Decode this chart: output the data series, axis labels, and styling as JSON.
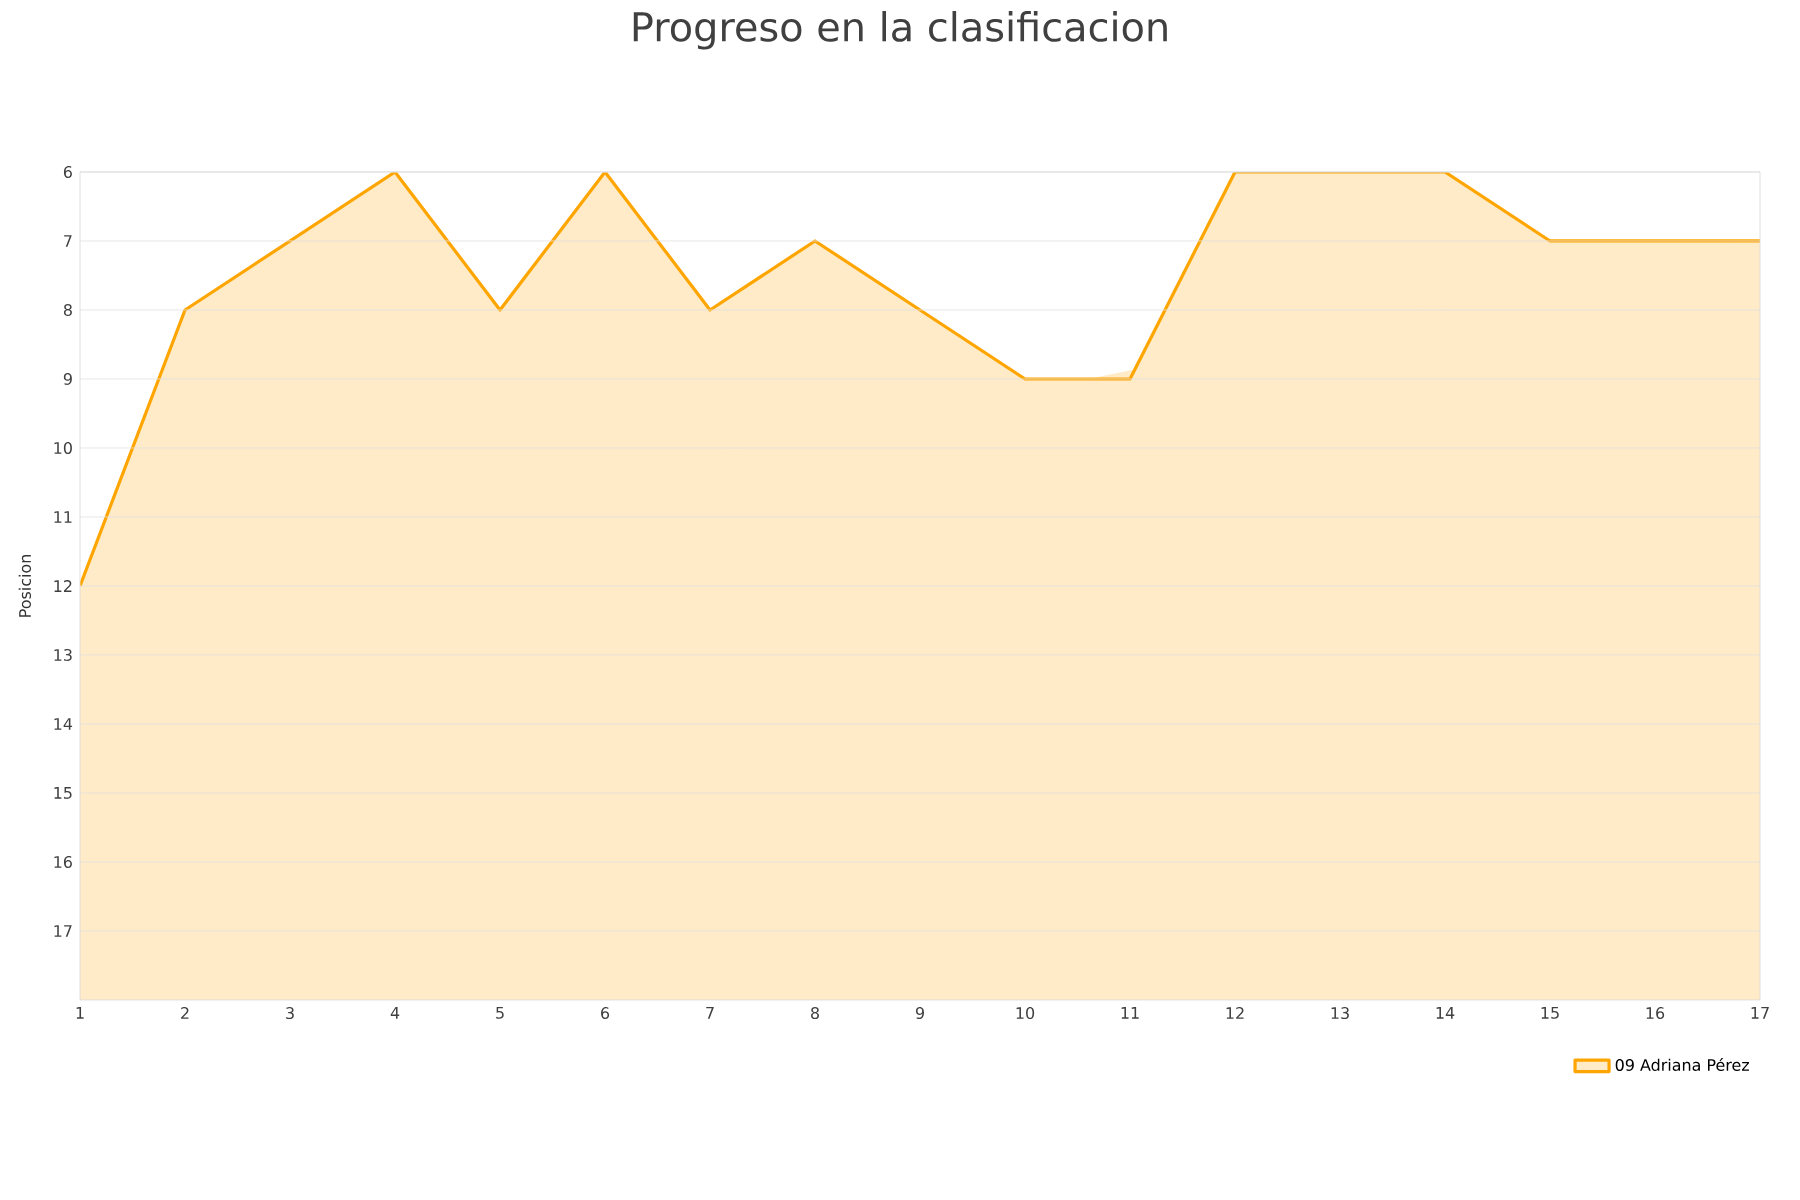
{
  "chart_data": {
    "type": "area",
    "title": "Progreso en la clasificacion",
    "ylabel": "Posicion",
    "x": [
      1,
      2,
      3,
      4,
      5,
      6,
      7,
      8,
      9,
      10,
      11,
      12,
      13,
      14,
      15,
      16,
      17
    ],
    "series": [
      {
        "name": "09 Adriana Pérez",
        "color": "#ffa500",
        "values": [
          12,
          8,
          7,
          6,
          8,
          6,
          8,
          7,
          8,
          9,
          9,
          6,
          6,
          6,
          7,
          7,
          7
        ]
      }
    ],
    "xlim": [
      1,
      17
    ],
    "xticks": [
      1,
      2,
      3,
      4,
      5,
      6,
      7,
      8,
      9,
      10,
      11,
      12,
      13,
      14,
      15,
      16,
      17
    ],
    "ylim": [
      18,
      6
    ],
    "yticks": [
      6,
      7,
      8,
      9,
      10,
      11,
      12,
      13,
      14,
      15,
      16,
      17
    ],
    "grid": "y",
    "legend": "bottom right"
  }
}
